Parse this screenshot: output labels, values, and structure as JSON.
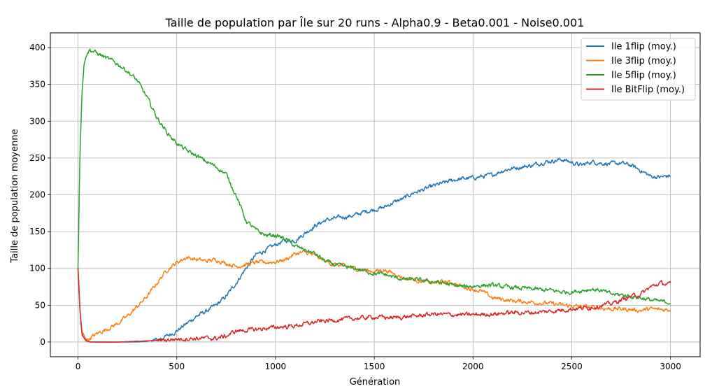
{
  "chart_data": {
    "type": "line",
    "title": "Taille de population par Île sur 20 runs - Alpha0.9 - Beta0.001 - Noise0.001",
    "xlabel": "Génération",
    "ylabel": "Taille de population moyenne",
    "xlim": [
      -140,
      3150
    ],
    "ylim": [
      -20,
      420
    ],
    "xticks": [
      0,
      500,
      1000,
      1500,
      2000,
      2500,
      3000
    ],
    "yticks": [
      0,
      50,
      100,
      150,
      200,
      250,
      300,
      350,
      400
    ],
    "grid": true,
    "legend_position": "top-right",
    "series": [
      {
        "name": "Ile 1flip (moy.)",
        "color": "#1f77b4",
        "x": [
          0,
          10,
          20,
          40,
          60,
          100,
          200,
          300,
          350,
          400,
          450,
          500,
          550,
          600,
          650,
          700,
          750,
          800,
          850,
          900,
          950,
          1000,
          1050,
          1100,
          1150,
          1200,
          1250,
          1300,
          1350,
          1400,
          1450,
          1500,
          1550,
          1600,
          1650,
          1700,
          1750,
          1800,
          1850,
          1900,
          1950,
          2000,
          2050,
          2100,
          2150,
          2200,
          2250,
          2300,
          2350,
          2400,
          2450,
          2500,
          2550,
          2600,
          2650,
          2700,
          2750,
          2800,
          2850,
          2900,
          2950,
          3000
        ],
        "y": [
          100,
          40,
          12,
          2,
          0,
          0,
          0,
          0,
          1,
          3,
          8,
          15,
          25,
          35,
          42,
          50,
          62,
          80,
          100,
          118,
          125,
          132,
          138,
          138,
          148,
          158,
          165,
          168,
          170,
          172,
          177,
          180,
          183,
          190,
          195,
          203,
          207,
          212,
          216,
          220,
          222,
          223,
          225,
          227,
          233,
          236,
          238,
          240,
          244,
          246,
          248,
          244,
          240,
          245,
          243,
          242,
          243,
          240,
          233,
          225,
          224,
          226
        ]
      },
      {
        "name": "Ile 3flip (moy.)",
        "color": "#ff7f0e",
        "x": [
          0,
          10,
          20,
          40,
          60,
          100,
          150,
          200,
          250,
          300,
          350,
          400,
          450,
          500,
          550,
          600,
          650,
          700,
          750,
          800,
          850,
          900,
          950,
          1000,
          1050,
          1100,
          1150,
          1200,
          1250,
          1300,
          1350,
          1400,
          1450,
          1500,
          1550,
          1600,
          1650,
          1700,
          1750,
          1800,
          1850,
          1900,
          1950,
          2000,
          2050,
          2100,
          2150,
          2200,
          2250,
          2300,
          2350,
          2400,
          2450,
          2500,
          2550,
          2600,
          2650,
          2700,
          2750,
          2800,
          2850,
          2900,
          2950,
          3000
        ],
        "y": [
          100,
          40,
          12,
          3,
          5,
          12,
          18,
          25,
          35,
          48,
          62,
          80,
          98,
          108,
          115,
          112,
          110,
          112,
          107,
          103,
          105,
          108,
          108,
          109,
          112,
          120,
          122,
          117,
          110,
          105,
          103,
          100,
          97,
          96,
          98,
          93,
          87,
          85,
          82,
          80,
          82,
          80,
          75,
          72,
          68,
          60,
          58,
          56,
          55,
          54,
          53,
          52,
          50,
          49,
          48,
          47,
          46,
          45,
          45,
          44,
          43,
          45,
          44,
          44
        ]
      },
      {
        "name": "Ile 5flip (moy.)",
        "color": "#2ca02c",
        "x": [
          0,
          10,
          20,
          30,
          40,
          60,
          100,
          150,
          200,
          250,
          300,
          350,
          400,
          450,
          500,
          550,
          600,
          650,
          700,
          750,
          800,
          850,
          900,
          950,
          1000,
          1050,
          1100,
          1150,
          1200,
          1250,
          1300,
          1350,
          1400,
          1450,
          1500,
          1550,
          1600,
          1650,
          1700,
          1750,
          1800,
          1850,
          1900,
          1950,
          2000,
          2050,
          2100,
          2150,
          2200,
          2250,
          2300,
          2350,
          2400,
          2450,
          2500,
          2550,
          2600,
          2650,
          2700,
          2750,
          2800,
          2850,
          2900,
          2950,
          3000
        ],
        "y": [
          100,
          260,
          340,
          375,
          390,
          397,
          392,
          385,
          378,
          368,
          355,
          332,
          305,
          285,
          270,
          260,
          253,
          245,
          238,
          228,
          200,
          165,
          152,
          145,
          145,
          140,
          130,
          125,
          120,
          110,
          105,
          102,
          100,
          97,
          93,
          92,
          88,
          85,
          85,
          83,
          82,
          80,
          77,
          75,
          76,
          77,
          77,
          75,
          74,
          73,
          72,
          71,
          70,
          68,
          68,
          70,
          72,
          70,
          65,
          64,
          62,
          60,
          57,
          55,
          54
        ]
      },
      {
        "name": "Ile BitFlip (moy.)",
        "color": "#d62728",
        "x": [
          0,
          10,
          20,
          30,
          40,
          60,
          100,
          200,
          300,
          400,
          500,
          600,
          700,
          750,
          800,
          900,
          1000,
          1100,
          1200,
          1300,
          1400,
          1500,
          1600,
          1700,
          1800,
          1900,
          2000,
          2100,
          2200,
          2300,
          2400,
          2500,
          2600,
          2650,
          2700,
          2750,
          2800,
          2850,
          2900,
          2950,
          3000
        ],
        "y": [
          100,
          40,
          12,
          5,
          2,
          0,
          0,
          0,
          1,
          2,
          4,
          5,
          5,
          8,
          15,
          17,
          20,
          22,
          27,
          30,
          32,
          34,
          33,
          35,
          38,
          37,
          37,
          38,
          40,
          40,
          42,
          45,
          47,
          50,
          52,
          57,
          62,
          65,
          75,
          80,
          78
        ]
      }
    ]
  }
}
